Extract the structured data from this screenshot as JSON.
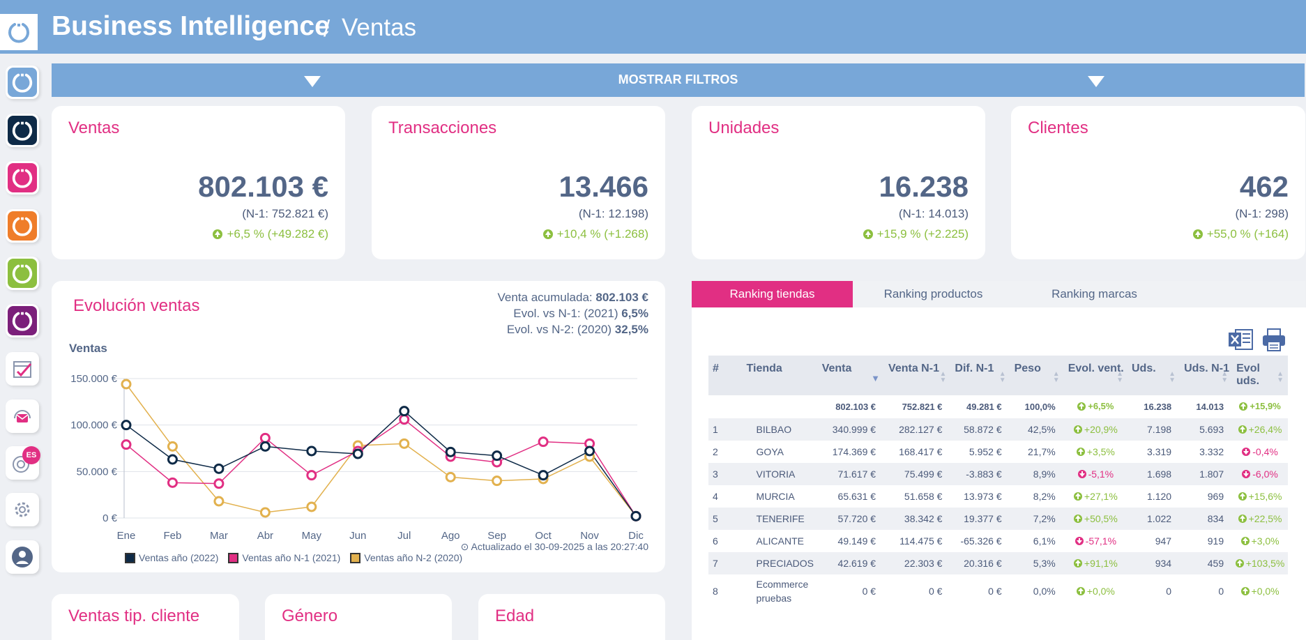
{
  "header": {
    "title": "Business Intelligence",
    "separator": "/",
    "section": "Ventas"
  },
  "sidebar": {
    "items": [
      {
        "name": "bi-light-blue",
        "color": "#78a7d8"
      },
      {
        "name": "bi-navy",
        "color": "#0e2a47"
      },
      {
        "name": "bi-pink",
        "color": "#e12f83"
      },
      {
        "name": "bi-orange",
        "color": "#ef7d2a"
      },
      {
        "name": "bi-green",
        "color": "#8cbf3f"
      },
      {
        "name": "bi-purple",
        "color": "#7b1f7a"
      },
      {
        "name": "calendar-check-icon"
      },
      {
        "name": "mail-headset-icon"
      },
      {
        "name": "chat-language-icon",
        "badge": "ES"
      },
      {
        "name": "settings-gear-icon"
      },
      {
        "name": "user-profile-icon"
      }
    ]
  },
  "filters": {
    "label": "MOSTRAR FILTROS"
  },
  "kpis": [
    {
      "title": "Ventas",
      "value": "802.103 €",
      "prev": "(N-1: 752.821 €)",
      "evolution": "+6,5 % (+49.282 €)"
    },
    {
      "title": "Transacciones",
      "value": "13.466",
      "prev": "(N-1: 12.198)",
      "evolution": "+10,4 % (+1.268)"
    },
    {
      "title": "Unidades",
      "value": "16.238",
      "prev": "(N-1: 14.013)",
      "evolution": "+15,9 % (+2.225)"
    },
    {
      "title": "Clientes",
      "value": "462",
      "prev": "(N-1: 298)",
      "evolution": "+55,0 % (+164)"
    }
  ],
  "evolution": {
    "title": "Evolución ventas",
    "accumulated_label": "Venta acumulada:",
    "accumulated_value": "802.103 €",
    "vs_n1_label": "Evol. vs N-1: (2021)",
    "vs_n1_value": "6,5%",
    "vs_n2_label": "Evol. vs N-2: (2020)",
    "vs_n2_value": "32,5%",
    "updated": "Actualizado el 30-09-2025 a las 20:27:40"
  },
  "chart_data": {
    "type": "line",
    "ylabel": "Ventas",
    "categories": [
      "Ene",
      "Feb",
      "Mar",
      "Abr",
      "May",
      "Jun",
      "Jul",
      "Ago",
      "Sep",
      "Oct",
      "Nov",
      "Dic"
    ],
    "y_ticks": [
      "0 €",
      "50.000 €",
      "100.000 €",
      "150.000 €"
    ],
    "ylim": [
      0,
      150000
    ],
    "grid": true,
    "legend": "bottom",
    "series": [
      {
        "name": "Ventas año (2022)",
        "color": "#0e2a47",
        "values": [
          100000,
          63000,
          53000,
          77000,
          72000,
          69000,
          115000,
          71000,
          67000,
          46000,
          72000,
          2000
        ]
      },
      {
        "name": "Ventas año N-1 (2021)",
        "color": "#e12f83",
        "values": [
          79000,
          38000,
          37000,
          86000,
          46000,
          72000,
          106000,
          66000,
          60000,
          82000,
          80000,
          2000
        ]
      },
      {
        "name": "Ventas año N-2 (2020)",
        "color": "#e2b14e",
        "values": [
          144000,
          77000,
          18000,
          6000,
          12000,
          78000,
          80000,
          44000,
          40000,
          42000,
          66000,
          2000
        ]
      }
    ]
  },
  "ranking": {
    "tabs": [
      "Ranking tiendas",
      "Ranking productos",
      "Ranking marcas"
    ],
    "headers": [
      "#",
      "Tienda",
      "Venta",
      "Venta N-1",
      "Dif. N-1",
      "Peso",
      "Evol. vent.",
      "Uds.",
      "Uds. N-1",
      "Evol uds."
    ],
    "total": {
      "venta": "802.103 €",
      "venta_n1": "752.821 €",
      "dif": "49.281 €",
      "peso": "100,0%",
      "evol": "+6,5%",
      "uds": "16.238",
      "uds_n1": "14.013",
      "evol_uds": "+15,9%"
    },
    "rows": [
      {
        "n": "1",
        "tienda": "BILBAO",
        "venta": "340.999 €",
        "venta_n1": "282.127 €",
        "dif": "58.872 €",
        "peso": "42,5%",
        "evol": "+20,9%",
        "uds": "7.198",
        "uds_n1": "5.693",
        "evol_uds": "+26,4%"
      },
      {
        "n": "2",
        "tienda": "GOYA",
        "venta": "174.369 €",
        "venta_n1": "168.417 €",
        "dif": "5.952 €",
        "peso": "21,7%",
        "evol": "+3,5%",
        "uds": "3.319",
        "uds_n1": "3.332",
        "evol_uds": "-0,4%"
      },
      {
        "n": "3",
        "tienda": "VITORIA",
        "venta": "71.617 €",
        "venta_n1": "75.499 €",
        "dif": "-3.883 €",
        "peso": "8,9%",
        "evol": "-5,1%",
        "uds": "1.698",
        "uds_n1": "1.807",
        "evol_uds": "-6,0%"
      },
      {
        "n": "4",
        "tienda": "MURCIA",
        "venta": "65.631 €",
        "venta_n1": "51.658 €",
        "dif": "13.973 €",
        "peso": "8,2%",
        "evol": "+27,1%",
        "uds": "1.120",
        "uds_n1": "969",
        "evol_uds": "+15,6%"
      },
      {
        "n": "5",
        "tienda": "TENERIFE",
        "venta": "57.720 €",
        "venta_n1": "38.342 €",
        "dif": "19.377 €",
        "peso": "7,2%",
        "evol": "+50,5%",
        "uds": "1.022",
        "uds_n1": "834",
        "evol_uds": "+22,5%"
      },
      {
        "n": "6",
        "tienda": "ALICANTE",
        "venta": "49.149 €",
        "venta_n1": "114.475 €",
        "dif": "-65.326 €",
        "peso": "6,1%",
        "evol": "-57,1%",
        "uds": "947",
        "uds_n1": "919",
        "evol_uds": "+3,0%"
      },
      {
        "n": "7",
        "tienda": "PRECIADOS",
        "venta": "42.619 €",
        "venta_n1": "22.303 €",
        "dif": "20.316 €",
        "peso": "5,3%",
        "evol": "+91,1%",
        "uds": "934",
        "uds_n1": "459",
        "evol_uds": "+103,5%"
      },
      {
        "n": "8",
        "tienda": "Ecommerce pruebas",
        "venta": "0 €",
        "venta_n1": "0 €",
        "dif": "0 €",
        "peso": "0,0%",
        "evol": "+0,0%",
        "uds": "0",
        "uds_n1": "0",
        "evol_uds": "+0,0%"
      }
    ]
  },
  "bottom_cards": [
    "Ventas tip. cliente",
    "Género",
    "Edad"
  ]
}
